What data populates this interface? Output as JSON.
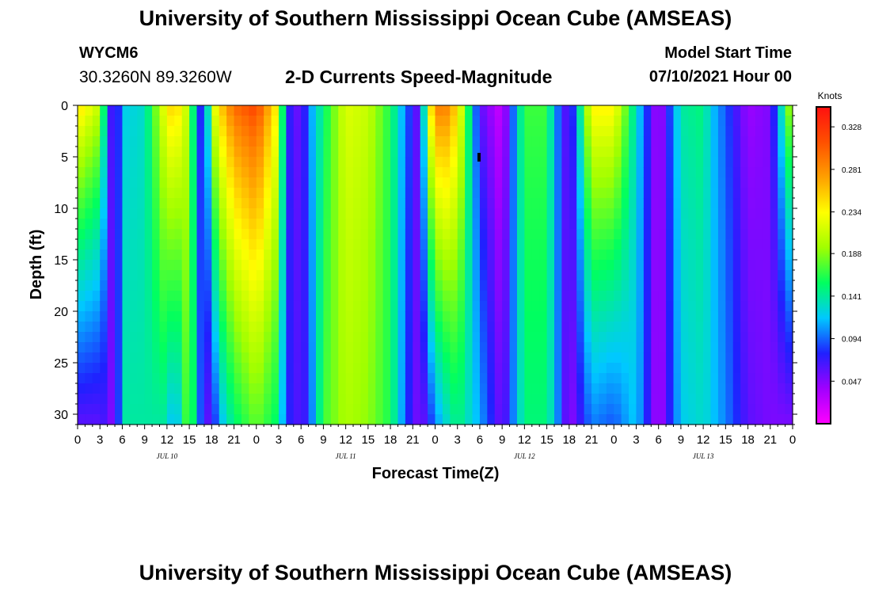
{
  "header": {
    "title": "University of Southern Mississippi Ocean Cube (AMSEAS)",
    "station_id": "WYCM6",
    "station_coords": "30.3260N  89.3260W",
    "plot_title": "2-D Currents Speed-Magnitude",
    "model_start_label": "Model Start Time",
    "model_start_value": "07/10/2021 Hour 00"
  },
  "footer": {
    "title": "University of Southern Mississippi Ocean Cube (AMSEAS)"
  },
  "chart_data": {
    "type": "heatmap",
    "xlabel": "Forecast Time(Z)",
    "ylabel": "Depth (ft)",
    "x_range_hours": [
      0,
      96
    ],
    "y_range_ft": [
      0,
      31
    ],
    "x_ticks": [
      "0",
      "3",
      "6",
      "9",
      "12",
      "15",
      "18",
      "21",
      "0",
      "3",
      "6",
      "9",
      "12",
      "15",
      "18",
      "21",
      "0",
      "3",
      "6",
      "9",
      "12",
      "15",
      "18",
      "21",
      "0",
      "3",
      "6",
      "9",
      "12",
      "15",
      "18",
      "21",
      "0"
    ],
    "y_ticks": [
      "0",
      "5",
      "10",
      "15",
      "20",
      "25",
      "30"
    ],
    "day_labels": [
      "JUL 10",
      "JUL 11",
      "JUL 12",
      "JUL 13"
    ],
    "colorbar": {
      "unit": "Knots",
      "min": 0.0,
      "max": 0.35,
      "tick_labels": [
        "0.328",
        "0.281",
        "0.234",
        "0.188",
        "0.141",
        "0.094",
        "0.047"
      ],
      "tick_values": [
        0.328,
        0.281,
        0.234,
        0.188,
        0.141,
        0.094,
        0.047
      ],
      "colors": [
        "#ff00ff",
        "#a000ff",
        "#2020ff",
        "#00c8ff",
        "#00ff60",
        "#a0ff00",
        "#ffff00",
        "#ffa000",
        "#ff5000",
        "#ff1010"
      ]
    },
    "speed_profile": {
      "hours": [
        0,
        3,
        4,
        5,
        6,
        9,
        12,
        13,
        15,
        16,
        17,
        18,
        19,
        21,
        24,
        27,
        28,
        30,
        31,
        33,
        36,
        39,
        42,
        45,
        46,
        47,
        48,
        49,
        51,
        54,
        57,
        60,
        63,
        64,
        66,
        69,
        72,
        75,
        78,
        81,
        84,
        85,
        87,
        90,
        93,
        96
      ],
      "surface": [
        0.25,
        0.21,
        0.1,
        0.04,
        0.12,
        0.13,
        0.24,
        0.26,
        0.2,
        0.1,
        0.06,
        0.21,
        0.25,
        0.3,
        0.32,
        0.23,
        0.08,
        0.05,
        0.1,
        0.15,
        0.22,
        0.21,
        0.16,
        0.07,
        0.05,
        0.22,
        0.28,
        0.3,
        0.25,
        0.06,
        0.02,
        0.17,
        0.17,
        0.11,
        0.05,
        0.24,
        0.24,
        0.13,
        0.03,
        0.14,
        0.15,
        0.12,
        0.09,
        0.04,
        0.05,
        0.22
      ],
      "bottom": [
        0.06,
        0.06,
        0.07,
        0.03,
        0.14,
        0.14,
        0.14,
        0.1,
        0.19,
        0.12,
        0.06,
        0.06,
        0.11,
        0.15,
        0.18,
        0.15,
        0.08,
        0.06,
        0.08,
        0.17,
        0.2,
        0.19,
        0.16,
        0.06,
        0.05,
        0.07,
        0.1,
        0.12,
        0.15,
        0.11,
        0.05,
        0.15,
        0.15,
        0.12,
        0.04,
        0.1,
        0.09,
        0.12,
        0.03,
        0.12,
        0.13,
        0.12,
        0.1,
        0.06,
        0.05,
        0.05
      ]
    }
  }
}
